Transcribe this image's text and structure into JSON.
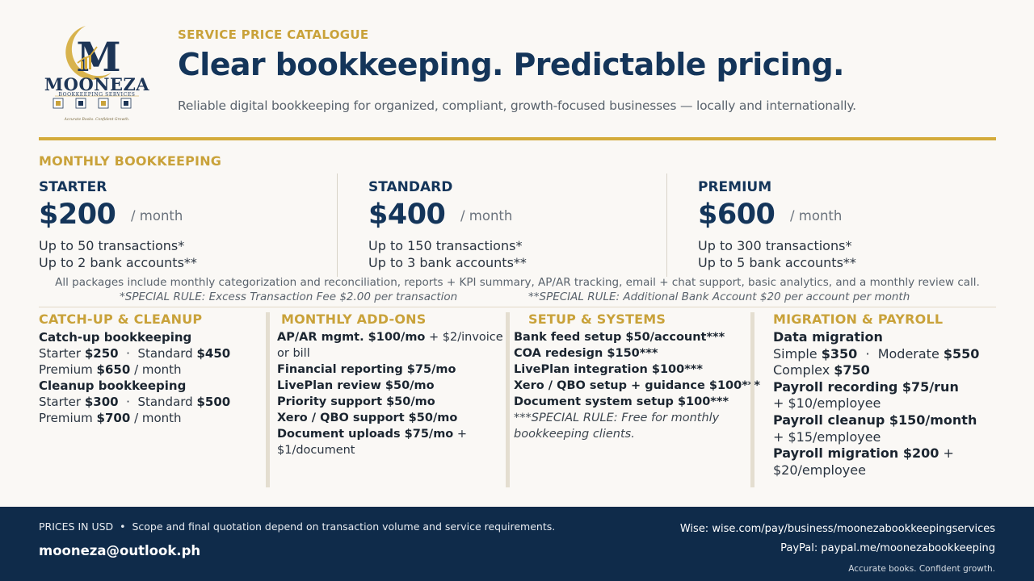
{
  "logo": {
    "monogram": "M",
    "name": "MOONEZA",
    "subtitle": "BOOKKEEPING SERVICES",
    "tagline": "Accurate Books. Confident Growth."
  },
  "header": {
    "eyebrow": "SERVICE PRICE CATALOGUE",
    "headline": "Clear bookkeeping. Predictable pricing.",
    "subtitle": "Reliable digital bookkeeping for organized, compliant, growth-focused businesses — locally and internationally."
  },
  "monthly": {
    "heading": "MONTHLY BOOKKEEPING",
    "tiers": [
      {
        "name": "STARTER",
        "price": "$200",
        "per": "/ month",
        "line1": "Up to 50 transactions*",
        "line2": "Up to 2 bank accounts**"
      },
      {
        "name": "STANDARD",
        "price": "$400",
        "per": "/ month",
        "line1": "Up to 150 transactions*",
        "line2": "Up to 3 bank accounts**"
      },
      {
        "name": "PREMIUM",
        "price": "$600",
        "per": "/ month",
        "line1": "Up to 300 transactions*",
        "line2": "Up to 5 bank accounts**"
      }
    ],
    "includes_note": "All packages include monthly categorization and reconciliation, reports + KPI summary, AP/AR tracking, email + chat support, basic analytics, and a monthly review call.",
    "rule1": "*SPECIAL RULE: Excess Transaction Fee $2.00 per transaction",
    "rule2": "**SPECIAL RULE: Additional Bank Account $20 per account per month"
  },
  "catchup": {
    "heading": "CATCH-UP & CLEANUP",
    "catchup_title": "Catch-up bookkeeping",
    "catchup_starter_label": "Starter",
    "catchup_starter_price": "$250",
    "catchup_standard_label": "Standard",
    "catchup_standard_price": "$450",
    "catchup_premium_label": "Premium",
    "catchup_premium_price": "$650",
    "catchup_premium_per": "/ month",
    "cleanup_title": "Cleanup bookkeeping",
    "cleanup_starter_label": "Starter",
    "cleanup_starter_price": "$300",
    "cleanup_standard_label": "Standard",
    "cleanup_standard_price": "$500",
    "cleanup_premium_label": "Premium",
    "cleanup_premium_price": "$700",
    "cleanup_premium_per": "/ month",
    "dot": "·"
  },
  "addons": {
    "heading": "MONTHLY ADD-ONS",
    "apar_bold": "AP/AR mgmt.  $100/mo",
    "apar_rest": " + $2/invoice or bill",
    "items": [
      "Financial reporting  $75/mo",
      "LivePlan review  $50/mo",
      "Priority support  $50/mo",
      "Xero / QBO support  $50/mo"
    ],
    "uploads_bold": "Document uploads  $75/mo",
    "uploads_rest": " + $1/document"
  },
  "setup": {
    "heading": "SETUP & SYSTEMS",
    "items": [
      "Bank feed setup  $50/account***",
      "COA redesign  $150***",
      "LivePlan integration  $100***",
      "Xero / QBO setup + guidance  $100***",
      "Document system setup  $100***"
    ],
    "rule": "***SPECIAL RULE: Free for monthly bookkeeping clients."
  },
  "migration": {
    "heading": "MIGRATION & PAYROLL",
    "data_title": "Data migration",
    "simple_label": "Simple",
    "simple_price": "$350",
    "moderate_label": "Moderate",
    "moderate_price": "$550",
    "complex_label": "Complex",
    "complex_price": "$750",
    "dot": "·",
    "payroll_recording": "Payroll recording  $75/run",
    "payroll_recording_extra": "+ $10/employee",
    "payroll_cleanup": "Payroll cleanup  $150/month",
    "payroll_cleanup_extra": "+ $15/employee",
    "payroll_migration": "Payroll migration  $200",
    "payroll_migration_plus": " +",
    "payroll_migration_extra": "$20/employee"
  },
  "footer": {
    "prices_label": "PRICES IN USD",
    "bullet": "•",
    "disclaimer": "Scope and final quotation depend on transaction volume and service requirements.",
    "email": "mooneza@outlook.ph",
    "wise": "Wise: wise.com/pay/business/moonezabookkeepingservices",
    "paypal": "PayPal: paypal.me/moonezabookkeeping",
    "tagline": "Accurate books. Confident growth."
  },
  "colors": {
    "navy": "#14355a",
    "gold": "#d4ab3b",
    "footer_bg": "#0f2b4a",
    "background": "#faf8f5"
  }
}
